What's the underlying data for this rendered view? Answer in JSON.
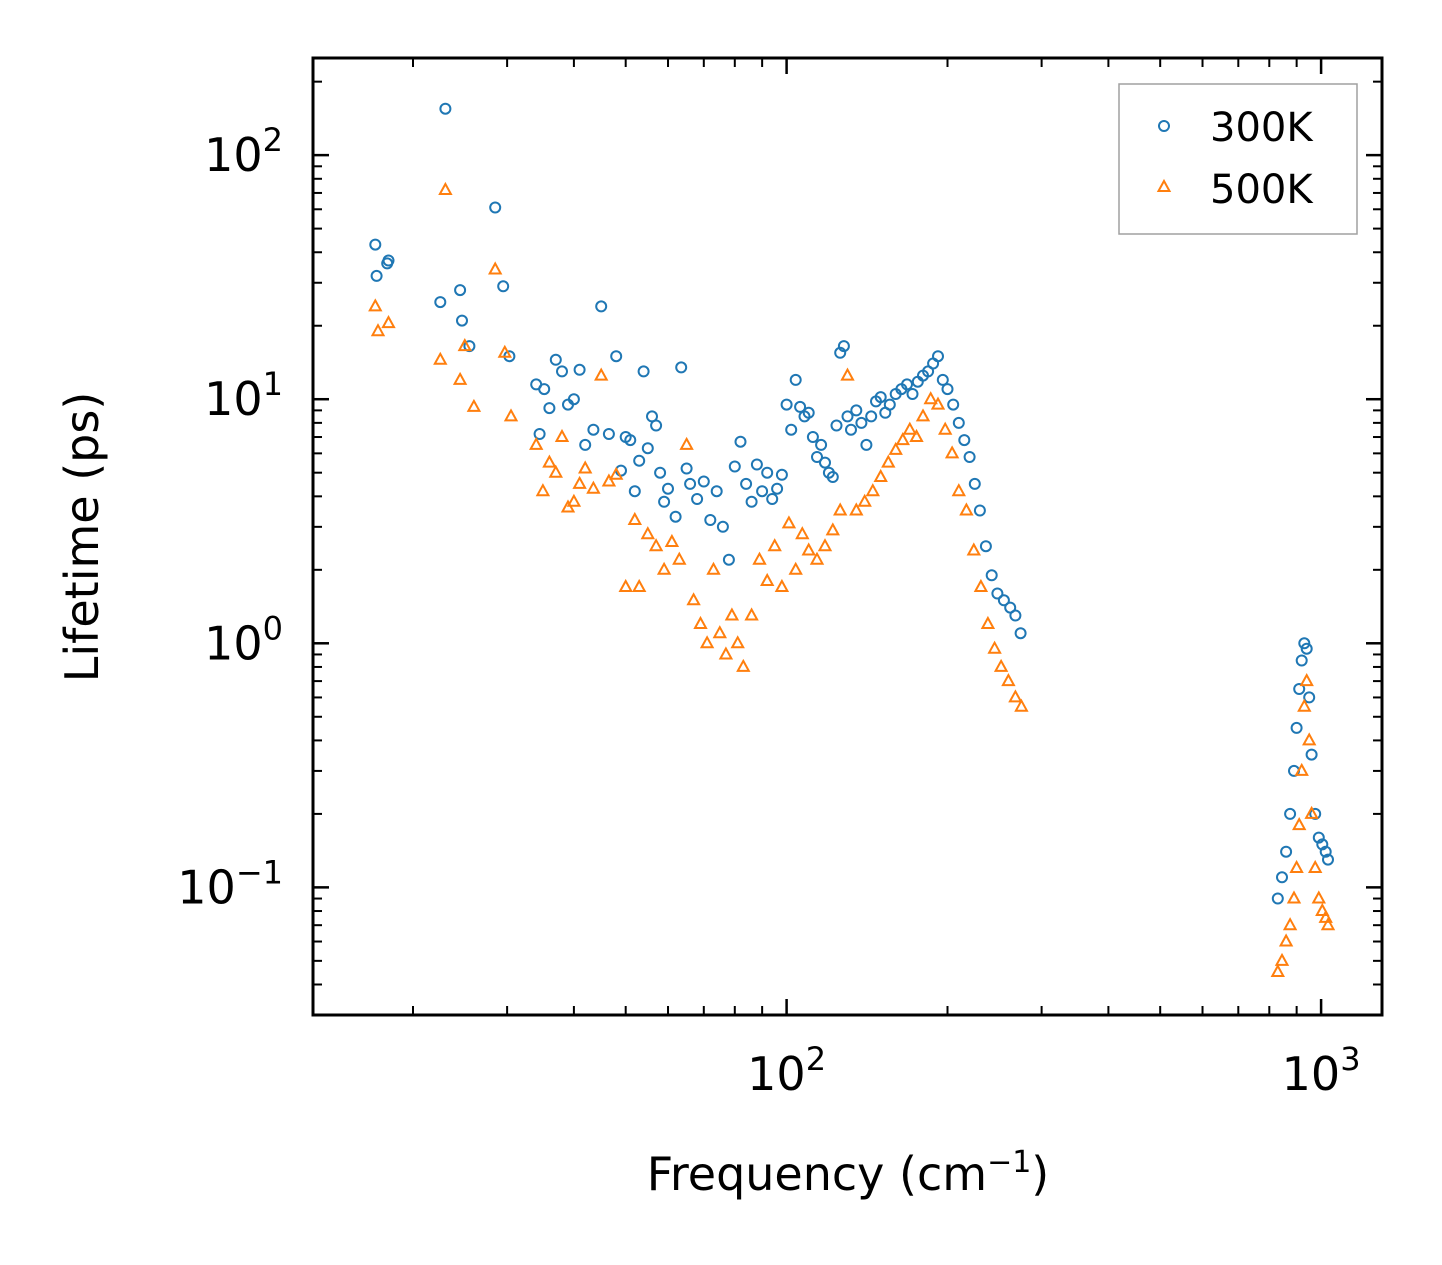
{
  "chart_data": {
    "type": "scatter",
    "title": "",
    "xlabel": "Frequency (cm",
    "xlabel_sup": "−1",
    "xlabel_suffix": ")",
    "ylabel": "Lifetime (ps)",
    "xscale": "log",
    "yscale": "log",
    "xlim": [
      13,
      1300
    ],
    "ylim": [
      0.03,
      250
    ],
    "x_ticks": [
      {
        "value": 100,
        "base": "10",
        "exp": "2"
      },
      {
        "value": 1000,
        "base": "10",
        "exp": "3"
      }
    ],
    "y_ticks": [
      {
        "value": 0.1,
        "base": "10",
        "exp": "−1"
      },
      {
        "value": 1,
        "base": "10",
        "exp": "0"
      },
      {
        "value": 10,
        "base": "10",
        "exp": "1"
      },
      {
        "value": 100,
        "base": "10",
        "exp": "2"
      }
    ],
    "legend_position": "top-right",
    "series": [
      {
        "name": "300K",
        "marker": "circle",
        "color": "#1f77b4",
        "x": [
          17.0,
          17.1,
          17.9,
          18.0,
          22.5,
          23.0,
          24.5,
          24.7,
          25.5,
          28.5,
          29.5,
          30.3,
          34.0,
          34.5,
          35.2,
          36.0,
          37.0,
          38.0,
          39.0,
          40.0,
          41.0,
          42.0,
          43.5,
          45.0,
          46.5,
          48.0,
          49.0,
          50.0,
          51.0,
          52.0,
          53.0,
          54.0,
          55.0,
          56.0,
          57.0,
          58.0,
          59.0,
          60.0,
          62.0,
          63.5,
          65.0,
          66.0,
          68.0,
          70.0,
          72.0,
          74.0,
          76.0,
          78.0,
          80.0,
          82.0,
          84.0,
          86.0,
          88.0,
          90.0,
          92.0,
          94.0,
          96.0,
          98.0,
          100.0,
          102.0,
          104.0,
          106.0,
          108.0,
          110.0,
          112.0,
          114.0,
          116.0,
          118.0,
          120.0,
          122.0,
          124.0,
          126.0,
          128.0,
          130.0,
          132.0,
          135.0,
          138.0,
          141.0,
          144.0,
          147.0,
          150.0,
          153.0,
          156.0,
          160.0,
          164.0,
          168.0,
          172.0,
          176.0,
          180.0,
          184.0,
          188.0,
          192.0,
          196.0,
          200.0,
          205.0,
          210.0,
          215.0,
          220.0,
          225.0,
          230.0,
          236.0,
          242.0,
          248.0,
          255.0,
          262.0,
          268.0,
          274.0,
          830.0,
          845.0,
          860.0,
          875.0,
          890.0,
          900.0,
          910.0,
          920.0,
          930.0,
          940.0,
          950.0,
          960.0,
          975.0,
          990.0,
          1005.0,
          1020.0,
          1030.0
        ],
        "y": [
          43,
          32,
          36,
          37,
          25,
          155,
          28,
          21,
          16.5,
          61,
          29,
          15,
          11.5,
          7.2,
          11,
          9.2,
          14.5,
          13,
          9.5,
          10,
          13.2,
          6.5,
          7.5,
          24,
          7.2,
          15,
          5.1,
          7,
          6.8,
          4.2,
          5.6,
          13,
          6.3,
          8.5,
          7.8,
          5.0,
          3.8,
          4.3,
          3.3,
          13.5,
          5.2,
          4.5,
          3.9,
          4.6,
          3.2,
          4.2,
          3.0,
          2.2,
          5.3,
          6.7,
          4.5,
          3.8,
          5.4,
          4.2,
          5.0,
          3.9,
          4.3,
          4.9,
          9.5,
          7.5,
          12,
          9.3,
          8.5,
          8.8,
          7.0,
          5.8,
          6.5,
          5.5,
          5.0,
          4.8,
          7.8,
          15.5,
          16.5,
          8.5,
          7.5,
          9.0,
          8.0,
          6.5,
          8.5,
          9.8,
          10.2,
          8.8,
          9.5,
          10.5,
          11.0,
          11.5,
          10.5,
          11.8,
          12.5,
          13.0,
          14.0,
          15.0,
          12.0,
          11.0,
          9.5,
          8.0,
          6.8,
          5.8,
          4.5,
          3.5,
          2.5,
          1.9,
          1.6,
          1.5,
          1.4,
          1.3,
          1.1,
          0.09,
          0.11,
          0.14,
          0.2,
          0.3,
          0.45,
          0.65,
          0.85,
          1.0,
          0.95,
          0.6,
          0.35,
          0.2,
          0.16,
          0.15,
          0.14,
          0.13
        ]
      },
      {
        "name": "500K",
        "marker": "triangle",
        "color": "#ff7f0e",
        "x": [
          17.0,
          17.2,
          18.0,
          22.5,
          23.0,
          24.5,
          25.0,
          26.0,
          28.5,
          29.7,
          30.5,
          34.0,
          35.0,
          36.0,
          37.0,
          38.0,
          39.0,
          40.0,
          41.0,
          42.0,
          43.5,
          45.0,
          46.5,
          48.0,
          50.0,
          52.0,
          53.0,
          55.0,
          57.0,
          59.0,
          61.0,
          63.0,
          65.0,
          67.0,
          69.0,
          71.0,
          73.0,
          75.0,
          77.0,
          79.0,
          81.0,
          83.0,
          86.0,
          89.0,
          92.0,
          95.0,
          98.0,
          101.0,
          104.0,
          107.0,
          110.0,
          114.0,
          118.0,
          122.0,
          126.0,
          130.0,
          135.0,
          140.0,
          145.0,
          150.0,
          155.0,
          160.0,
          165.0,
          170.0,
          175.0,
          180.0,
          186.0,
          192.0,
          198.0,
          204.0,
          210.0,
          217.0,
          224.0,
          231.0,
          238.0,
          245.0,
          252.0,
          260.0,
          268.0,
          275.0,
          830.0,
          845.0,
          860.0,
          875.0,
          890.0,
          900.0,
          910.0,
          920.0,
          930.0,
          940.0,
          950.0,
          960.0,
          975.0,
          990.0,
          1005.0,
          1020.0,
          1030.0
        ],
        "y": [
          24,
          19,
          20.5,
          14.5,
          72,
          12,
          16.5,
          9.3,
          34,
          15.5,
          8.5,
          6.5,
          4.2,
          5.5,
          5.0,
          7.0,
          3.6,
          3.8,
          4.5,
          5.2,
          4.3,
          12.5,
          4.6,
          4.9,
          1.7,
          3.2,
          1.7,
          2.8,
          2.5,
          2.0,
          2.6,
          2.2,
          6.5,
          1.5,
          1.2,
          1.0,
          2.0,
          1.1,
          0.9,
          1.3,
          1.0,
          0.8,
          1.3,
          2.2,
          1.8,
          2.5,
          1.7,
          3.1,
          2.0,
          2.8,
          2.4,
          2.2,
          2.5,
          2.9,
          3.5,
          12.5,
          3.5,
          3.8,
          4.2,
          4.8,
          5.5,
          6.2,
          6.8,
          7.5,
          7.0,
          8.5,
          10.0,
          9.5,
          7.5,
          6.0,
          4.2,
          3.5,
          2.4,
          1.7,
          1.2,
          0.95,
          0.8,
          0.7,
          0.6,
          0.55,
          0.045,
          0.05,
          0.06,
          0.07,
          0.09,
          0.12,
          0.18,
          0.3,
          0.55,
          0.7,
          0.4,
          0.2,
          0.12,
          0.09,
          0.08,
          0.075,
          0.07
        ]
      }
    ]
  }
}
